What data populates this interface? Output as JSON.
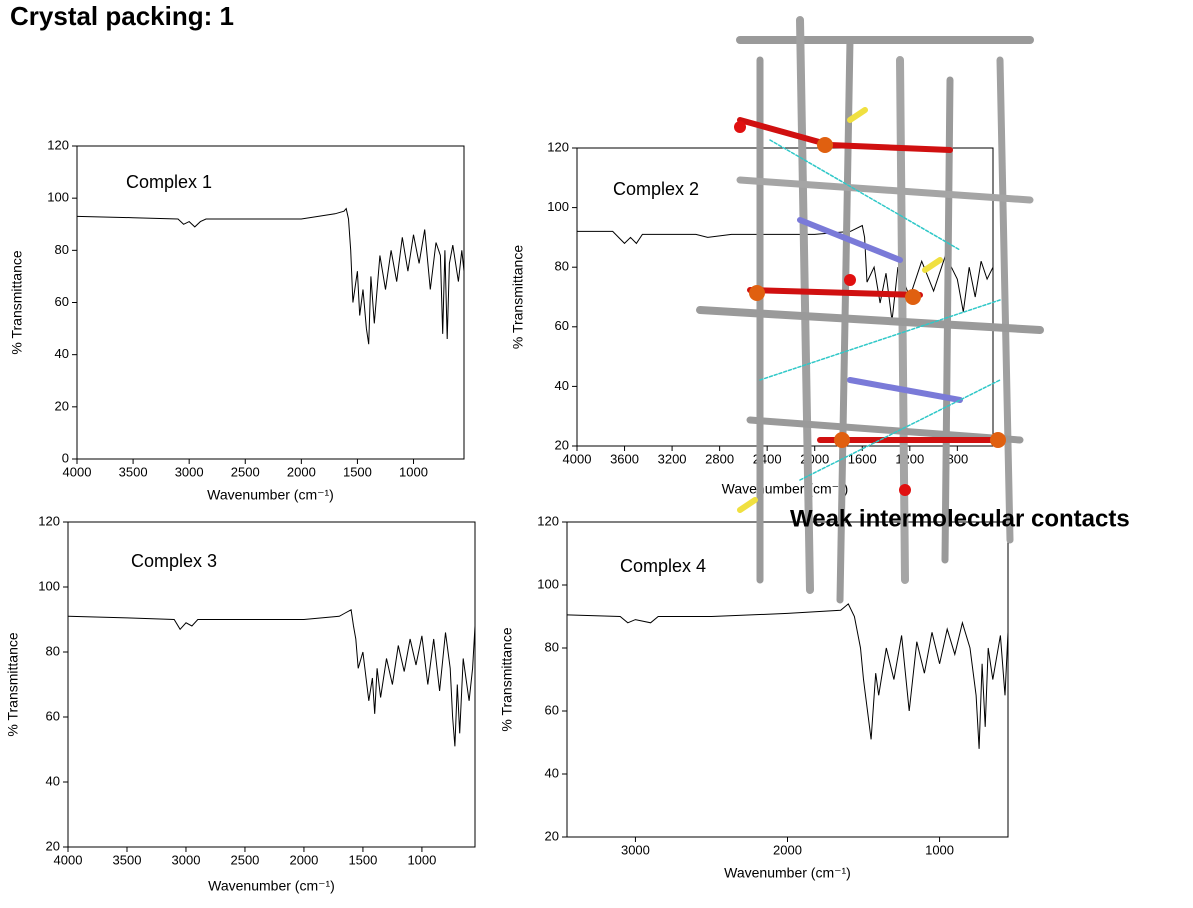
{
  "header": {
    "title": "Crystal packing: 1"
  },
  "annotation": "Weak intermolecular contacts",
  "chart_data": [
    {
      "type": "line",
      "title": "Complex 1",
      "xlabel": "Wavenumber (cm⁻¹)",
      "ylabel": "% Transmittance",
      "color": "#000000",
      "xlim": [
        4000,
        550
      ],
      "xticks": [
        4000,
        3500,
        3000,
        2500,
        2000,
        1500,
        1000
      ],
      "ylim": [
        0,
        120
      ],
      "yticks": [
        0,
        20,
        40,
        60,
        80,
        100,
        120
      ],
      "x": [
        4000,
        3500,
        3100,
        3050,
        3000,
        2950,
        2900,
        2850,
        2500,
        2000,
        1700,
        1620,
        1600,
        1580,
        1560,
        1540,
        1500,
        1480,
        1450,
        1420,
        1400,
        1380,
        1350,
        1300,
        1250,
        1200,
        1150,
        1100,
        1050,
        1000,
        950,
        900,
        850,
        800,
        760,
        740,
        720,
        700,
        680,
        650,
        600,
        570,
        550
      ],
      "values": [
        93,
        92.5,
        92,
        90,
        91,
        89,
        91,
        92,
        92,
        92,
        94,
        95,
        96,
        92,
        80,
        60,
        72,
        55,
        65,
        50,
        44,
        70,
        52,
        78,
        65,
        80,
        68,
        85,
        72,
        86,
        75,
        88,
        65,
        83,
        78,
        48,
        80,
        46,
        75,
        82,
        68,
        80,
        72
      ]
    },
    {
      "type": "line",
      "title": "Complex 2",
      "xlabel": "Wavenumber (cm⁻¹)",
      "ylabel": "% Transmittance",
      "color": "#000000",
      "xlim": [
        4000,
        500
      ],
      "xticks": [
        4000,
        3600,
        3200,
        2800,
        2400,
        2000,
        1600,
        1200,
        800
      ],
      "ylim": [
        20,
        120
      ],
      "yticks": [
        20,
        40,
        60,
        80,
        100,
        120
      ],
      "x": [
        4000,
        3700,
        3650,
        3600,
        3550,
        3500,
        3450,
        3000,
        2900,
        2700,
        2400,
        2000,
        1700,
        1600,
        1580,
        1560,
        1500,
        1450,
        1400,
        1350,
        1300,
        1200,
        1100,
        1000,
        900,
        800,
        750,
        700,
        650,
        600,
        550,
        500
      ],
      "values": [
        92,
        92,
        90,
        88,
        90,
        88,
        91,
        91,
        90,
        91,
        91,
        91,
        92,
        94,
        90,
        75,
        80,
        68,
        78,
        62,
        80,
        70,
        82,
        72,
        84,
        76,
        65,
        80,
        70,
        82,
        76,
        80
      ]
    },
    {
      "type": "line",
      "title": "Complex 3",
      "xlabel": "Wavenumber (cm⁻¹)",
      "ylabel": "% Transmittance",
      "color": "#000000",
      "xlim": [
        4000,
        550
      ],
      "xticks": [
        4000,
        3500,
        3000,
        2500,
        2000,
        1500,
        1000
      ],
      "ylim": [
        20,
        120
      ],
      "yticks": [
        20,
        40,
        60,
        80,
        100,
        120
      ],
      "x": [
        4000,
        3500,
        3100,
        3050,
        3000,
        2950,
        2900,
        2500,
        2000,
        1700,
        1650,
        1600,
        1580,
        1560,
        1540,
        1500,
        1450,
        1420,
        1400,
        1380,
        1350,
        1300,
        1250,
        1200,
        1150,
        1100,
        1050,
        1000,
        950,
        900,
        850,
        800,
        760,
        740,
        720,
        700,
        680,
        650,
        600,
        570,
        550
      ],
      "values": [
        91,
        90.5,
        90,
        87,
        89,
        88,
        90,
        90,
        90,
        91,
        92,
        93,
        88,
        84,
        75,
        80,
        65,
        72,
        61,
        75,
        66,
        78,
        70,
        82,
        74,
        84,
        76,
        85,
        70,
        84,
        68,
        86,
        75,
        60,
        51,
        70,
        55,
        78,
        65,
        75,
        88
      ]
    },
    {
      "type": "line",
      "title": "Complex 4",
      "xlabel": "Wavenumber (cm⁻¹)",
      "ylabel": "% Transmittance",
      "color": "#000000",
      "xlim": [
        3450,
        550
      ],
      "xticks": [
        3000,
        2000,
        1000
      ],
      "ylim": [
        20,
        120
      ],
      "yticks": [
        20,
        40,
        60,
        80,
        100,
        120
      ],
      "x": [
        3450,
        3100,
        3050,
        3000,
        2900,
        2850,
        2500,
        2000,
        1650,
        1600,
        1560,
        1520,
        1500,
        1450,
        1420,
        1400,
        1350,
        1300,
        1250,
        1200,
        1150,
        1100,
        1050,
        1000,
        950,
        900,
        850,
        800,
        760,
        740,
        720,
        700,
        680,
        650,
        600,
        570,
        550
      ],
      "values": [
        90.5,
        90,
        88,
        89,
        88,
        90,
        90,
        91,
        92,
        94,
        90,
        80,
        70,
        51,
        72,
        65,
        80,
        70,
        84,
        60,
        82,
        72,
        85,
        75,
        86,
        78,
        88,
        80,
        65,
        48,
        75,
        55,
        80,
        70,
        84,
        65,
        85
      ]
    }
  ]
}
